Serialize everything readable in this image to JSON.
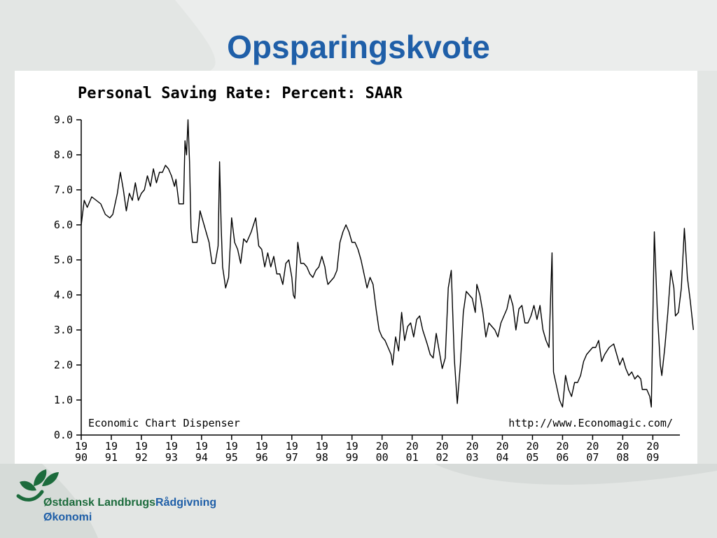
{
  "slide": {
    "title": "Opsparingskvote",
    "brand_part1": "Østdansk Landbrugs",
    "brand_part2": "Rådgivning",
    "brand_line2": "Økonomi"
  },
  "colors": {
    "title": "#1f5fa8",
    "brand_green": "#1c6b3c",
    "brand_blue": "#1f5fa8",
    "line": "#000000"
  },
  "icons": {
    "logo": "leaf-logo-icon"
  },
  "chart_data": {
    "type": "line",
    "title": "Personal Saving Rate: Percent: SAAR",
    "footer_left": "Economic Chart Dispenser",
    "footer_right": "http://www.Economagic.com/",
    "xlabel": "",
    "ylabel": "",
    "ylim": [
      0,
      9
    ],
    "xlim": [
      1990,
      2009.9
    ],
    "y_ticks": [
      "0.0",
      "1.0",
      "2.0",
      "3.0",
      "4.0",
      "5.0",
      "6.0",
      "7.0",
      "8.0",
      "9.0"
    ],
    "x_ticks": [
      {
        "top": "19",
        "bottom": "90"
      },
      {
        "top": "19",
        "bottom": "91"
      },
      {
        "top": "19",
        "bottom": "92"
      },
      {
        "top": "19",
        "bottom": "93"
      },
      {
        "top": "19",
        "bottom": "94"
      },
      {
        "top": "19",
        "bottom": "95"
      },
      {
        "top": "19",
        "bottom": "96"
      },
      {
        "top": "19",
        "bottom": "97"
      },
      {
        "top": "19",
        "bottom": "98"
      },
      {
        "top": "19",
        "bottom": "99"
      },
      {
        "top": "20",
        "bottom": "00"
      },
      {
        "top": "20",
        "bottom": "01"
      },
      {
        "top": "20",
        "bottom": "02"
      },
      {
        "top": "20",
        "bottom": "03"
      },
      {
        "top": "20",
        "bottom": "04"
      },
      {
        "top": "20",
        "bottom": "05"
      },
      {
        "top": "20",
        "bottom": "06"
      },
      {
        "top": "20",
        "bottom": "07"
      },
      {
        "top": "20",
        "bottom": "08"
      },
      {
        "top": "20",
        "bottom": "09"
      }
    ],
    "grid": false,
    "series": [
      {
        "values": [
          [
            1990.0,
            6.0
          ],
          [
            1990.1,
            6.7
          ],
          [
            1990.2,
            6.5
          ],
          [
            1990.35,
            6.8
          ],
          [
            1990.5,
            6.7
          ],
          [
            1990.65,
            6.6
          ],
          [
            1990.8,
            6.3
          ],
          [
            1990.95,
            6.2
          ],
          [
            1991.05,
            6.3
          ],
          [
            1991.2,
            6.9
          ],
          [
            1991.3,
            7.5
          ],
          [
            1991.4,
            7.0
          ],
          [
            1991.5,
            6.4
          ],
          [
            1991.6,
            6.9
          ],
          [
            1991.7,
            6.7
          ],
          [
            1991.8,
            7.2
          ],
          [
            1991.9,
            6.7
          ],
          [
            1992.0,
            6.9
          ],
          [
            1992.1,
            7.0
          ],
          [
            1992.2,
            7.4
          ],
          [
            1992.3,
            7.1
          ],
          [
            1992.4,
            7.6
          ],
          [
            1992.5,
            7.2
          ],
          [
            1992.6,
            7.5
          ],
          [
            1992.7,
            7.5
          ],
          [
            1992.8,
            7.7
          ],
          [
            1992.9,
            7.6
          ],
          [
            1993.0,
            7.4
          ],
          [
            1993.1,
            7.1
          ],
          [
            1993.15,
            7.3
          ],
          [
            1993.25,
            6.6
          ],
          [
            1993.4,
            6.6
          ],
          [
            1993.45,
            8.4
          ],
          [
            1993.5,
            8.0
          ],
          [
            1993.55,
            9.0
          ],
          [
            1993.6,
            7.8
          ],
          [
            1993.65,
            5.9
          ],
          [
            1993.7,
            5.5
          ],
          [
            1993.85,
            5.5
          ],
          [
            1993.95,
            6.4
          ],
          [
            1994.05,
            6.1
          ],
          [
            1994.15,
            5.8
          ],
          [
            1994.25,
            5.5
          ],
          [
            1994.3,
            5.2
          ],
          [
            1994.35,
            4.9
          ],
          [
            1994.45,
            4.9
          ],
          [
            1994.55,
            5.4
          ],
          [
            1994.6,
            7.8
          ],
          [
            1994.65,
            6.0
          ],
          [
            1994.7,
            4.8
          ],
          [
            1994.75,
            4.5
          ],
          [
            1994.8,
            4.2
          ],
          [
            1994.9,
            4.5
          ],
          [
            1995.0,
            6.2
          ],
          [
            1995.1,
            5.5
          ],
          [
            1995.2,
            5.3
          ],
          [
            1995.3,
            4.9
          ],
          [
            1995.4,
            5.6
          ],
          [
            1995.5,
            5.5
          ],
          [
            1995.65,
            5.8
          ],
          [
            1995.8,
            6.2
          ],
          [
            1995.9,
            5.4
          ],
          [
            1996.0,
            5.3
          ],
          [
            1996.1,
            4.8
          ],
          [
            1996.2,
            5.2
          ],
          [
            1996.3,
            4.8
          ],
          [
            1996.4,
            5.1
          ],
          [
            1996.5,
            4.6
          ],
          [
            1996.6,
            4.6
          ],
          [
            1996.7,
            4.3
          ],
          [
            1996.8,
            4.9
          ],
          [
            1996.9,
            5.0
          ],
          [
            1997.0,
            4.5
          ],
          [
            1997.05,
            4.0
          ],
          [
            1997.1,
            3.9
          ],
          [
            1997.2,
            5.5
          ],
          [
            1997.3,
            4.9
          ],
          [
            1997.4,
            4.9
          ],
          [
            1997.5,
            4.8
          ],
          [
            1997.6,
            4.6
          ],
          [
            1997.7,
            4.5
          ],
          [
            1997.8,
            4.7
          ],
          [
            1997.9,
            4.8
          ],
          [
            1998.0,
            5.1
          ],
          [
            1998.1,
            4.8
          ],
          [
            1998.15,
            4.5
          ],
          [
            1998.2,
            4.3
          ],
          [
            1998.3,
            4.4
          ],
          [
            1998.4,
            4.5
          ],
          [
            1998.5,
            4.7
          ],
          [
            1998.6,
            5.5
          ],
          [
            1998.7,
            5.8
          ],
          [
            1998.8,
            6.0
          ],
          [
            1998.9,
            5.8
          ],
          [
            1999.0,
            5.5
          ],
          [
            1999.1,
            5.5
          ],
          [
            1999.2,
            5.3
          ],
          [
            1999.3,
            5.0
          ],
          [
            1999.4,
            4.6
          ],
          [
            1999.5,
            4.2
          ],
          [
            1999.6,
            4.5
          ],
          [
            1999.7,
            4.3
          ],
          [
            1999.8,
            3.6
          ],
          [
            1999.9,
            3.0
          ],
          [
            2000.0,
            2.8
          ],
          [
            2000.1,
            2.7
          ],
          [
            2000.2,
            2.5
          ],
          [
            2000.3,
            2.3
          ],
          [
            2000.35,
            2.0
          ],
          [
            2000.45,
            2.8
          ],
          [
            2000.55,
            2.4
          ],
          [
            2000.65,
            3.5
          ],
          [
            2000.75,
            2.7
          ],
          [
            2000.85,
            3.1
          ],
          [
            2000.95,
            3.2
          ],
          [
            2001.05,
            2.8
          ],
          [
            2001.15,
            3.3
          ],
          [
            2001.25,
            3.4
          ],
          [
            2001.35,
            3.0
          ],
          [
            2001.5,
            2.6
          ],
          [
            2001.6,
            2.3
          ],
          [
            2001.7,
            2.2
          ],
          [
            2001.8,
            2.9
          ],
          [
            2001.9,
            2.4
          ],
          [
            2002.0,
            1.9
          ],
          [
            2002.1,
            2.2
          ],
          [
            2002.2,
            4.2
          ],
          [
            2002.3,
            4.7
          ],
          [
            2002.4,
            2.2
          ],
          [
            2002.5,
            0.9
          ],
          [
            2002.6,
            2.0
          ],
          [
            2002.7,
            3.5
          ],
          [
            2002.8,
            4.1
          ],
          [
            2002.9,
            4.0
          ],
          [
            2003.0,
            3.9
          ],
          [
            2003.1,
            3.5
          ],
          [
            2003.15,
            4.3
          ],
          [
            2003.25,
            4.0
          ],
          [
            2003.35,
            3.5
          ],
          [
            2003.45,
            2.8
          ],
          [
            2003.55,
            3.2
          ],
          [
            2003.65,
            3.1
          ],
          [
            2003.75,
            3.0
          ],
          [
            2003.85,
            2.8
          ],
          [
            2003.95,
            3.2
          ],
          [
            2004.05,
            3.4
          ],
          [
            2004.15,
            3.6
          ],
          [
            2004.25,
            4.0
          ],
          [
            2004.35,
            3.7
          ],
          [
            2004.45,
            3.0
          ],
          [
            2004.55,
            3.6
          ],
          [
            2004.65,
            3.7
          ],
          [
            2004.75,
            3.2
          ],
          [
            2004.85,
            3.2
          ],
          [
            2004.95,
            3.4
          ],
          [
            2005.05,
            3.7
          ],
          [
            2005.15,
            3.3
          ],
          [
            2005.25,
            3.7
          ],
          [
            2005.35,
            3.0
          ],
          [
            2005.45,
            2.7
          ],
          [
            2005.55,
            2.5
          ],
          [
            2005.65,
            5.2
          ],
          [
            2005.7,
            1.8
          ],
          [
            2005.8,
            1.4
          ],
          [
            2005.9,
            1.0
          ],
          [
            2006.0,
            0.8
          ],
          [
            2006.1,
            1.7
          ],
          [
            2006.2,
            1.3
          ],
          [
            2006.3,
            1.1
          ],
          [
            2006.4,
            1.5
          ],
          [
            2006.5,
            1.5
          ],
          [
            2006.6,
            1.7
          ],
          [
            2006.7,
            2.1
          ],
          [
            2006.8,
            2.3
          ],
          [
            2006.9,
            2.4
          ],
          [
            2007.0,
            2.5
          ],
          [
            2007.1,
            2.5
          ],
          [
            2007.2,
            2.7
          ],
          [
            2007.3,
            2.1
          ],
          [
            2007.4,
            2.3
          ],
          [
            2007.55,
            2.5
          ],
          [
            2007.7,
            2.6
          ],
          [
            2007.8,
            2.3
          ],
          [
            2007.9,
            2.0
          ],
          [
            2008.0,
            2.2
          ],
          [
            2008.1,
            1.9
          ],
          [
            2008.2,
            1.7
          ],
          [
            2008.3,
            1.8
          ],
          [
            2008.4,
            1.6
          ],
          [
            2008.5,
            1.7
          ],
          [
            2008.6,
            1.6
          ],
          [
            2008.65,
            1.3
          ],
          [
            2008.8,
            1.3
          ],
          [
            2008.9,
            1.1
          ],
          [
            2008.95,
            0.8
          ],
          [
            2009.05,
            5.8
          ],
          [
            2009.15,
            3.5
          ],
          [
            2009.25,
            2.0
          ],
          [
            2009.3,
            1.7
          ],
          [
            2009.4,
            2.5
          ],
          [
            2009.5,
            3.5
          ],
          [
            2009.6,
            4.7
          ],
          [
            2009.7,
            4.2
          ],
          [
            2009.75,
            3.4
          ],
          [
            2009.85,
            3.5
          ],
          [
            2009.95,
            4.2
          ],
          [
            2010.05,
            5.9
          ],
          [
            2010.15,
            4.5
          ],
          [
            2010.25,
            3.8
          ],
          [
            2010.35,
            3.0
          ]
        ]
      }
    ]
  }
}
